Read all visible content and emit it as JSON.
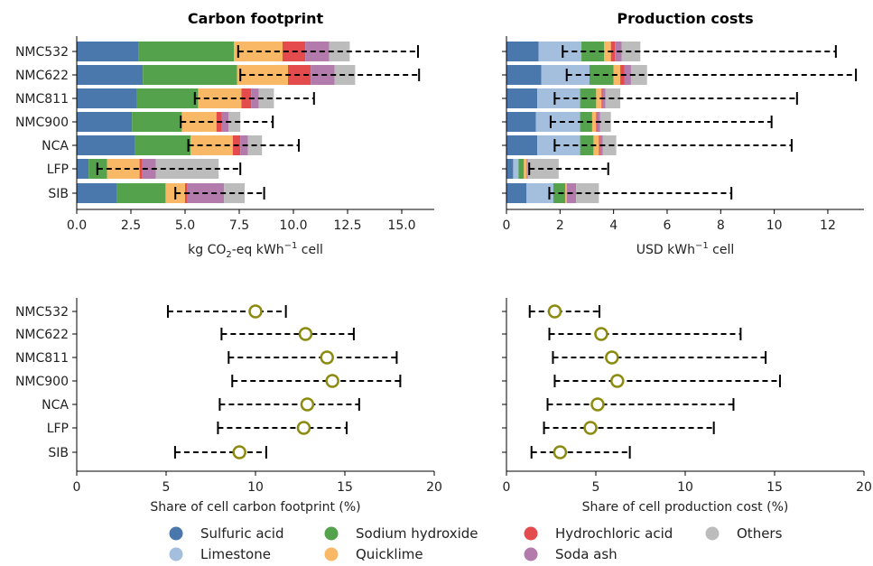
{
  "colors": {
    "Sulfuric acid": "#4a78ac",
    "Limestone": "#a4bede",
    "Sodium hydroxide": "#54a24b",
    "Quicklime": "#f8b865",
    "Hydrochloric acid": "#e34b4c",
    "Soda ash": "#b27bab",
    "Others": "#bcbcbc",
    "marker": "#8c8b0f"
  },
  "legend": [
    "Sulfuric acid",
    "Sodium hydroxide",
    "Hydrochloric acid",
    "Others",
    "Limestone",
    "Quicklime",
    "Soda ash"
  ],
  "chart_data": [
    {
      "type": "bar",
      "orientation": "horizontal",
      "stacked": true,
      "title": "Carbon footprint",
      "xlabel_parts": [
        "kg CO",
        "2",
        "-eq kWh",
        "−1",
        " cell"
      ],
      "xlim": [
        0,
        16.5
      ],
      "xticks": [
        "0.0",
        "2.5",
        "5.0",
        "7.5",
        "10.0",
        "12.5",
        "15.0"
      ],
      "xtick_values": [
        0,
        2.5,
        5,
        7.5,
        10,
        12.5,
        15
      ],
      "categories": [
        "NMC532",
        "NMC622",
        "NMC811",
        "NMC900",
        "NCA",
        "LFP",
        "SIB"
      ],
      "series": [
        {
          "name": "Sulfuric acid",
          "values": [
            2.85,
            3.05,
            2.75,
            2.55,
            2.7,
            0.55,
            1.85
          ]
        },
        {
          "name": "Limestone",
          "values": [
            0,
            0,
            0,
            0,
            0,
            0,
            0
          ]
        },
        {
          "name": "Sodium hydroxide",
          "values": [
            4.4,
            4.35,
            2.85,
            2.3,
            2.55,
            0.85,
            2.25
          ]
        },
        {
          "name": "Quicklime",
          "values": [
            2.25,
            2.35,
            2.0,
            1.6,
            1.95,
            1.5,
            0.9
          ]
        },
        {
          "name": "Hydrochloric acid",
          "values": [
            1.05,
            1.05,
            0.45,
            0.25,
            0.35,
            0.1,
            0.1
          ]
        },
        {
          "name": "Soda ash",
          "values": [
            1.1,
            1.1,
            0.35,
            0.3,
            0.35,
            0.65,
            1.7
          ]
        },
        {
          "name": "Others",
          "values": [
            0.95,
            0.95,
            0.7,
            0.55,
            0.65,
            2.9,
            0.95
          ]
        }
      ],
      "error_low": [
        7.45,
        7.55,
        5.45,
        4.8,
        5.15,
        0.95,
        4.55
      ],
      "error_high": [
        15.75,
        15.8,
        10.95,
        9.05,
        10.25,
        7.55,
        8.65
      ]
    },
    {
      "type": "bar",
      "orientation": "horizontal",
      "stacked": true,
      "title": "Production costs",
      "xlabel_parts": [
        "USD kWh",
        "−1",
        " cell"
      ],
      "xlim": [
        0,
        13.35
      ],
      "xticks": [
        "0",
        "2",
        "4",
        "6",
        "8",
        "10",
        "12"
      ],
      "xtick_values": [
        0,
        2,
        4,
        6,
        8,
        10,
        12
      ],
      "categories": [
        "NMC532",
        "NMC622",
        "NMC811",
        "NMC900",
        "NCA",
        "LFP",
        "SIB"
      ],
      "series": [
        {
          "name": "Sulfuric acid",
          "values": [
            1.2,
            1.3,
            1.15,
            1.1,
            1.15,
            0.25,
            0.75
          ]
        },
        {
          "name": "Limestone",
          "values": [
            1.6,
            1.8,
            1.6,
            1.65,
            1.6,
            0.2,
            1.0
          ]
        },
        {
          "name": "Sodium hydroxide",
          "values": [
            0.85,
            0.9,
            0.6,
            0.45,
            0.5,
            0.2,
            0.45
          ]
        },
        {
          "name": "Quicklime",
          "values": [
            0.25,
            0.25,
            0.2,
            0.15,
            0.2,
            0.1,
            0.05
          ]
        },
        {
          "name": "Hydrochloric acid",
          "values": [
            0.15,
            0.15,
            0.05,
            0.05,
            0.05,
            0.0,
            0.0
          ]
        },
        {
          "name": "Soda ash",
          "values": [
            0.25,
            0.25,
            0.1,
            0.1,
            0.1,
            0.05,
            0.35
          ]
        },
        {
          "name": "Others",
          "values": [
            0.7,
            0.6,
            0.55,
            0.4,
            0.5,
            1.15,
            0.85
          ]
        }
      ],
      "error_low": [
        2.1,
        2.25,
        1.8,
        1.65,
        1.8,
        0.85,
        1.6
      ],
      "error_high": [
        12.3,
        13.05,
        10.85,
        9.9,
        10.65,
        3.8,
        8.4
      ]
    },
    {
      "type": "scatter",
      "title": "",
      "xlabel": "Share of cell carbon footprint (%)",
      "xlim": [
        0,
        20
      ],
      "xticks": [
        "0",
        "5",
        "10",
        "15",
        "20"
      ],
      "xtick_values": [
        0,
        5,
        10,
        15,
        20
      ],
      "categories": [
        "NMC532",
        "NMC622",
        "NMC811",
        "NMC900",
        "NCA",
        "LFP",
        "SIB"
      ],
      "values": [
        10.0,
        12.8,
        14.0,
        14.3,
        12.9,
        12.7,
        9.1
      ],
      "error_low": [
        5.1,
        8.1,
        8.5,
        8.7,
        8.0,
        7.9,
        5.5
      ],
      "error_high": [
        11.7,
        15.5,
        17.9,
        18.1,
        15.8,
        15.1,
        10.6
      ]
    },
    {
      "type": "scatter",
      "title": "",
      "xlabel": "Share of cell production cost (%)",
      "xlim": [
        0,
        20
      ],
      "xticks": [
        "0",
        "5",
        "10",
        "15",
        "20"
      ],
      "xtick_values": [
        0,
        5,
        10,
        15,
        20
      ],
      "categories": [
        "NMC532",
        "NMC622",
        "NMC811",
        "NMC900",
        "NCA",
        "LFP",
        "SIB"
      ],
      "values": [
        2.7,
        5.3,
        5.9,
        6.2,
        5.1,
        4.7,
        3.0
      ],
      "error_low": [
        1.3,
        2.4,
        2.6,
        2.7,
        2.3,
        2.1,
        1.4
      ],
      "error_high": [
        5.2,
        13.1,
        14.5,
        15.3,
        12.7,
        11.6,
        6.9
      ]
    }
  ]
}
